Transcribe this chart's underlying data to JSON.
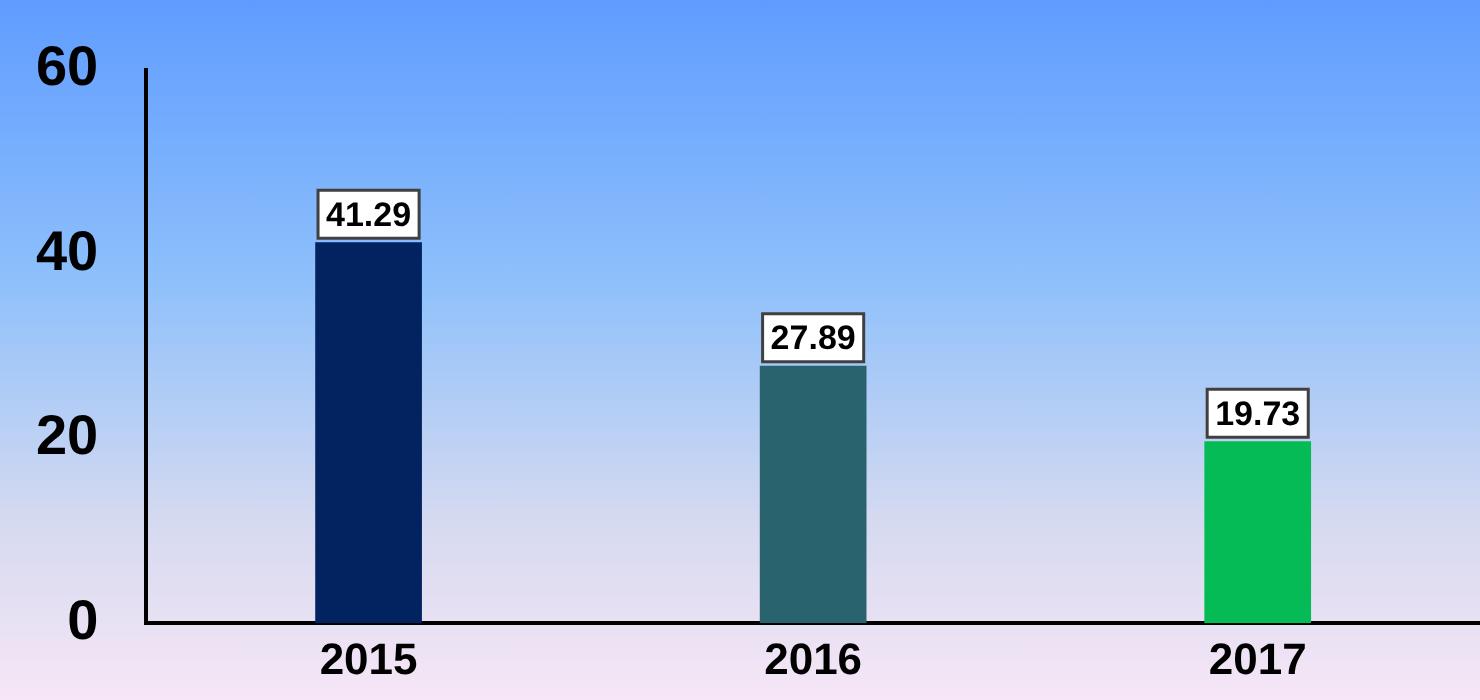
{
  "chart_data": {
    "type": "bar",
    "categories": [
      "2015",
      "2016",
      "2017"
    ],
    "colors": [
      "#032260",
      "#29636e",
      "#05bb55"
    ],
    "values": [
      41.29,
      27.89,
      19.73
    ],
    "ylim": [
      0,
      60
    ],
    "yticks": [
      0,
      20,
      40,
      60
    ],
    "grid": false,
    "data_labels": true
  }
}
